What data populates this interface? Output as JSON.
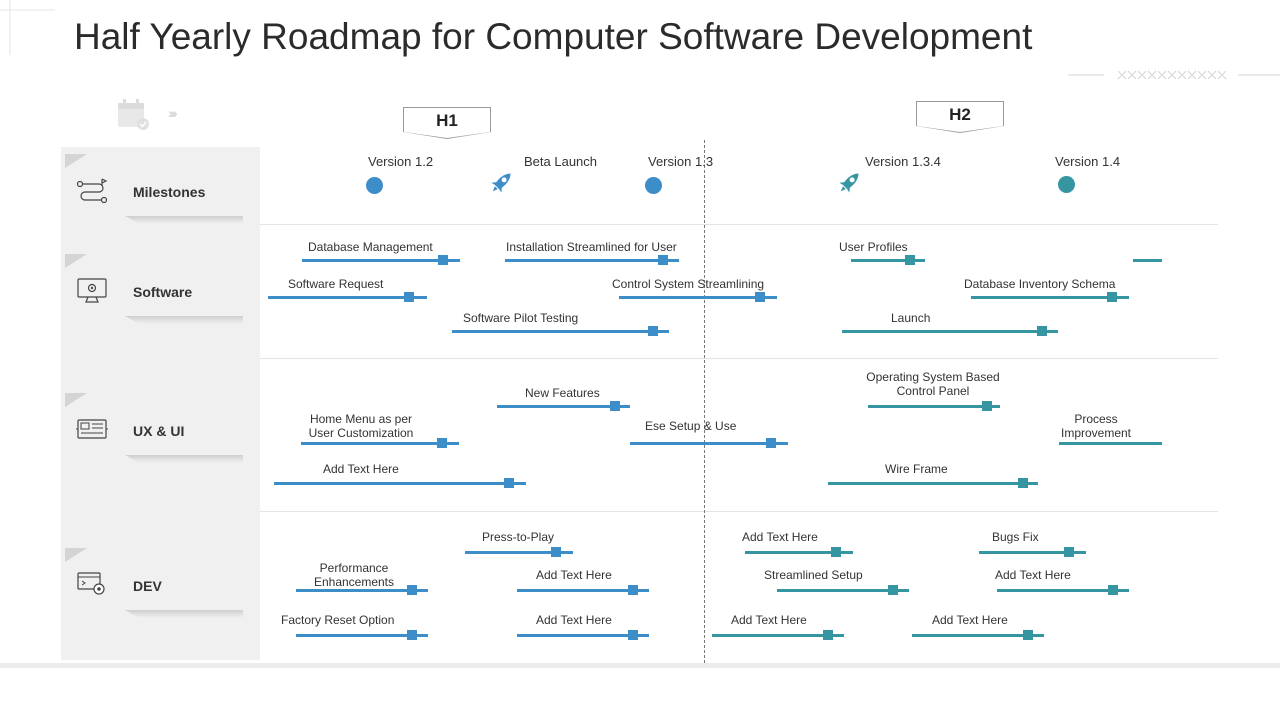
{
  "title": "Half Yearly Roadmap for Computer Software Development",
  "colors": {
    "blue": "#3c8dc8",
    "teal": "#3596a2",
    "panel": "#f0f0f0"
  },
  "halves": [
    "H1",
    "H2"
  ],
  "categories": [
    {
      "label": "Milestones",
      "icon": "route-icon"
    },
    {
      "label": "Software",
      "icon": "monitor-gear-icon"
    },
    {
      "label": "UX & UI",
      "icon": "ui-layout-icon"
    },
    {
      "label": "DEV",
      "icon": "dev-settings-icon"
    }
  ],
  "milestones": [
    {
      "label": "Version 1.2",
      "marker": "dot-blue"
    },
    {
      "label": "Beta Launch",
      "marker": "rocket-icon"
    },
    {
      "label": "Version 1.3",
      "marker": "dot-blue"
    },
    {
      "label": "Version 1.3.4",
      "marker": "rocket-icon"
    },
    {
      "label": "Version 1.4",
      "marker": "dot-teal"
    }
  ],
  "software": {
    "h1": [
      "Database Management",
      "Installation Streamlined for User",
      "Software Request",
      "Control System Streamlining",
      "Software Pilot Testing"
    ],
    "h2": [
      "User Profiles",
      "Database Inventory Schema",
      "Launch"
    ]
  },
  "ux": {
    "h1": [
      "New Features",
      "Home Menu as per",
      "User Customization",
      "Ese Setup & Use",
      "Add Text Here"
    ],
    "h2": [
      "Operating System Based",
      "Control Panel",
      "Process",
      "Improvement",
      "Wire Frame"
    ]
  },
  "dev": {
    "h1": [
      "Press-to-Play",
      "Performance",
      "Enhancements",
      "Add Text Here",
      "Factory Reset Option",
      "Add Text Here"
    ],
    "h2": [
      "Add Text Here",
      "Bugs Fix",
      "Streamlined Setup",
      "Add Text Here",
      "Add Text Here",
      "Add Text Here"
    ]
  }
}
